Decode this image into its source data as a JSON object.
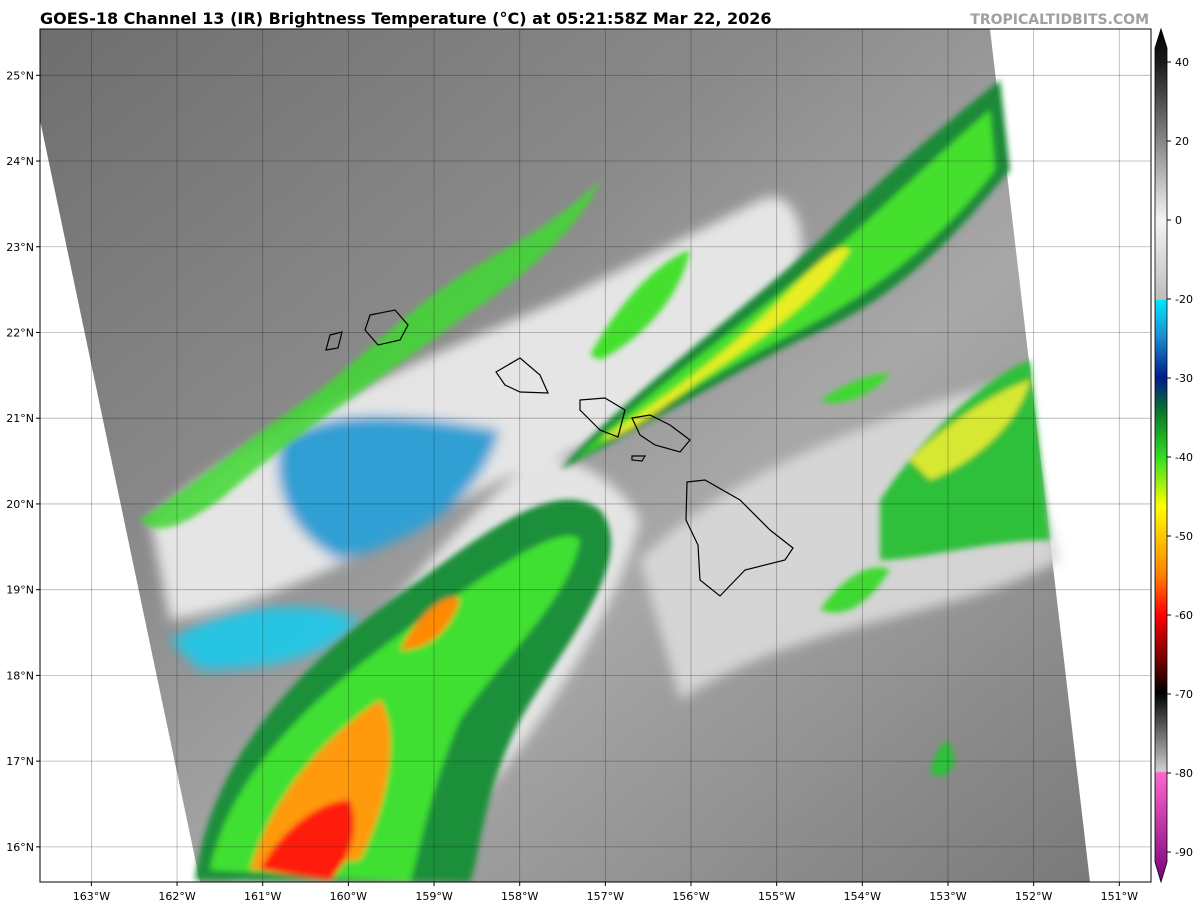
{
  "title": "GOES-18 Channel 13 (IR) Brightness Temperature (°C) at 05:21:58Z Mar 22, 2026",
  "credit": "TROPICALTIDBITS.COM",
  "map": {
    "xlim": [
      -163.6,
      -150.63
    ],
    "ylim": [
      15.59,
      25.54
    ],
    "xticks": [
      {
        "value": -163,
        "label": "163°W"
      },
      {
        "value": -162,
        "label": "162°W"
      },
      {
        "value": -161,
        "label": "161°W"
      },
      {
        "value": -160,
        "label": "160°W"
      },
      {
        "value": -159,
        "label": "159°W"
      },
      {
        "value": -158,
        "label": "158°W"
      },
      {
        "value": -157,
        "label": "157°W"
      },
      {
        "value": -156,
        "label": "156°W"
      },
      {
        "value": -155,
        "label": "155°W"
      },
      {
        "value": -154,
        "label": "154°W"
      },
      {
        "value": -153,
        "label": "153°W"
      },
      {
        "value": -152,
        "label": "152°W"
      },
      {
        "value": -151,
        "label": "151°W"
      }
    ],
    "yticks": [
      {
        "value": 16,
        "label": "16°N"
      },
      {
        "value": 17,
        "label": "17°N"
      },
      {
        "value": 18,
        "label": "18°N"
      },
      {
        "value": 19,
        "label": "19°N"
      },
      {
        "value": 20,
        "label": "20°N"
      },
      {
        "value": 21,
        "label": "21°N"
      },
      {
        "value": 22,
        "label": "22°N"
      },
      {
        "value": 23,
        "label": "23°N"
      },
      {
        "value": 24,
        "label": "24°N"
      },
      {
        "value": 25,
        "label": "25°N"
      }
    ]
  },
  "colorbar": {
    "ticks": [
      40,
      20,
      0,
      -20,
      -30,
      -40,
      -50,
      -60,
      -70,
      -80,
      -90
    ]
  }
}
